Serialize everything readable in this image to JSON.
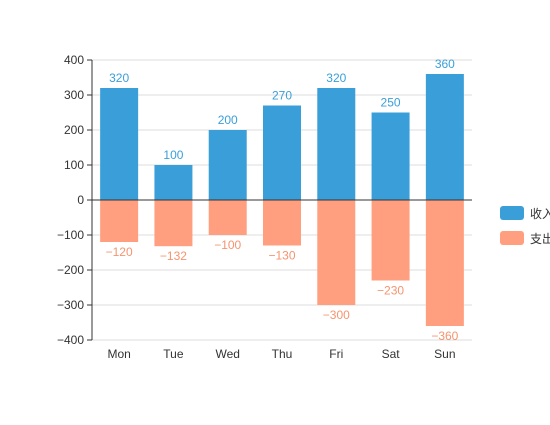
{
  "chart_data": {
    "type": "bar",
    "stacked": true,
    "categories": [
      "Mon",
      "Tue",
      "Wed",
      "Thu",
      "Fri",
      "Sat",
      "Sun"
    ],
    "series": [
      {
        "name": "收入",
        "values": [
          320,
          100,
          200,
          270,
          320,
          250,
          360
        ],
        "color": "#3a9fd9",
        "label_color": "#3a9fd9"
      },
      {
        "name": "支出",
        "values": [
          -120,
          -132,
          -100,
          -130,
          -300,
          -230,
          -360
        ],
        "color": "#ff9f7f",
        "label_color": "#f5946f"
      }
    ],
    "y_ticks": [
      "400",
      "300",
      "200",
      "100",
      "0",
      "−100",
      "−200",
      "−300",
      "−400"
    ],
    "ylim": [
      -400,
      400
    ],
    "xlabel": "",
    "ylabel": "",
    "grid": true,
    "legend_position": "right",
    "data_labels": true
  },
  "legend": {
    "items": [
      {
        "label": "收入",
        "color": "#3a9fd9"
      },
      {
        "label": "支出",
        "color": "#ff9f7f"
      }
    ]
  }
}
